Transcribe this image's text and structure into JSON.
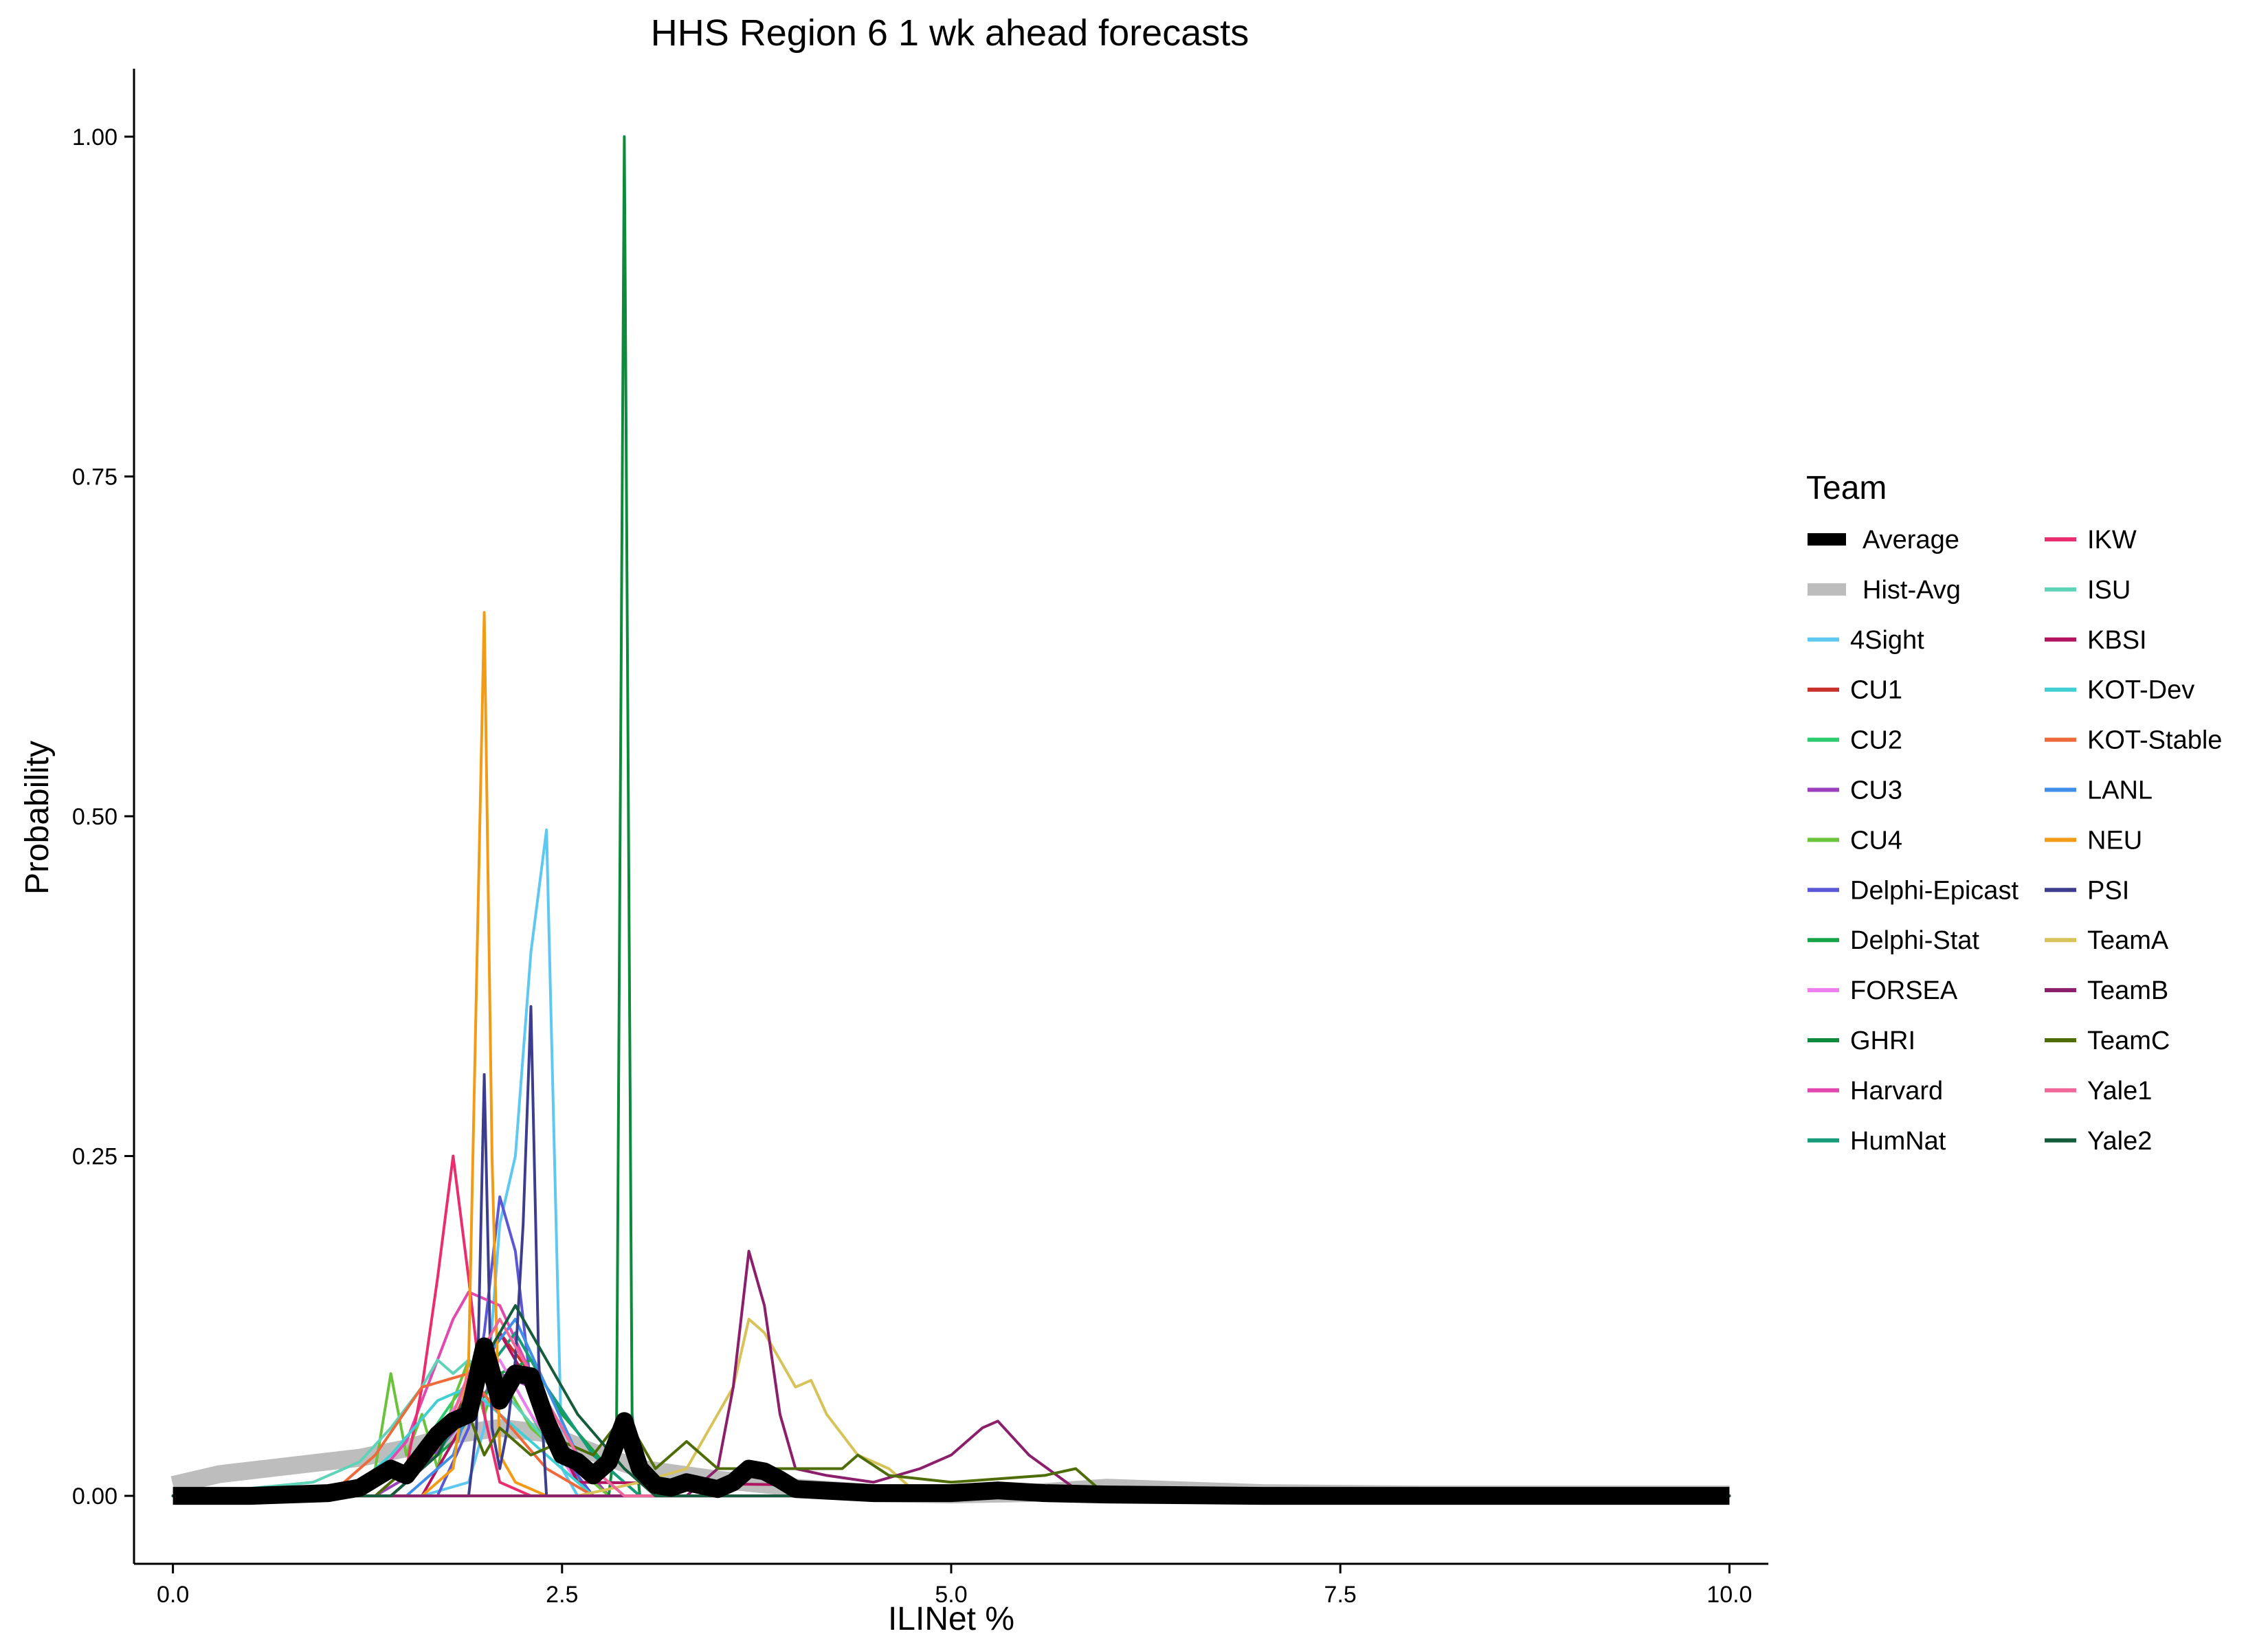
{
  "chart_data": {
    "type": "line",
    "title": "HHS Region 6 1 wk ahead forecasts",
    "xlabel": "ILINet %",
    "ylabel": "Probability",
    "xlim": [
      -0.25,
      10.25
    ],
    "ylim": [
      -0.05,
      1.05
    ],
    "xticks": [
      0,
      2.5,
      5,
      7.5,
      10
    ],
    "xtick_labels": [
      "0.0",
      "2.5",
      "5.0",
      "7.5",
      "10.0"
    ],
    "yticks": [
      0,
      0.25,
      0.5,
      0.75,
      1
    ],
    "ytick_labels": [
      "0.00",
      "0.25",
      "0.50",
      "0.75",
      "1.00"
    ],
    "grid": false,
    "legend": {
      "title": "Team",
      "placement": "right",
      "columns": [
        [
          "Average",
          "Hist-Avg",
          "4Sight",
          "CU1",
          "CU2",
          "CU3",
          "CU4",
          "Delphi-Epicast",
          "Delphi-Stat",
          "FORSEA",
          "GHRI",
          "Harvard",
          "HumNat"
        ],
        [
          "IKW",
          "ISU",
          "KBSI",
          "KOT-Dev",
          "KOT-Stable",
          "LANL",
          "NEU",
          "PSI",
          "TeamA",
          "TeamB",
          "TeamC",
          "Yale1",
          "Yale2"
        ]
      ]
    },
    "series": [
      {
        "name": "Hist-Avg",
        "color": "#bdbdbd",
        "width": 26,
        "x": [
          0,
          0.3,
          0.6,
          0.9,
          1.2,
          1.5,
          1.8,
          2.1,
          2.4,
          2.7,
          3.0,
          3.5,
          4.0,
          4.5,
          5.0,
          5.5,
          6.0,
          6.5,
          7.0,
          8,
          9,
          10
        ],
        "y": [
          0.008,
          0.016,
          0.02,
          0.024,
          0.028,
          0.035,
          0.045,
          0.05,
          0.046,
          0.032,
          0.02,
          0.012,
          0.006,
          0.002,
          0.001,
          0.002,
          0.006,
          0.004,
          0.002,
          0.001,
          0.001,
          0.001
        ]
      },
      {
        "name": "4Sight",
        "color": "#5ec8f2",
        "width": 4,
        "x": [
          0,
          1.2,
          1.6,
          1.9,
          2.0,
          2.1,
          2.2,
          2.3,
          2.4,
          2.5,
          2.6,
          10
        ],
        "y": [
          0,
          0,
          0,
          0.01,
          0.05,
          0.2,
          0.25,
          0.4,
          0.49,
          0.02,
          0,
          0
        ]
      },
      {
        "name": "CU1",
        "color": "#c8302a",
        "width": 4,
        "x": [
          0,
          1.4,
          1.7,
          1.9,
          2.1,
          2.3,
          2.5,
          2.8,
          10
        ],
        "y": [
          0,
          0,
          0.03,
          0.08,
          0.12,
          0.09,
          0.04,
          0,
          0
        ]
      },
      {
        "name": "CU2",
        "color": "#2ecc71",
        "width": 4,
        "x": [
          0,
          1.2,
          1.5,
          1.8,
          2.0,
          2.2,
          2.4,
          2.7,
          10
        ],
        "y": [
          0,
          0,
          0.02,
          0.07,
          0.1,
          0.08,
          0.04,
          0,
          0
        ]
      },
      {
        "name": "CU3",
        "color": "#9b3fbf",
        "width": 4,
        "x": [
          0,
          1.3,
          1.6,
          1.9,
          2.1,
          2.3,
          2.5,
          2.8,
          10
        ],
        "y": [
          0,
          0,
          0.02,
          0.06,
          0.09,
          0.08,
          0.04,
          0,
          0
        ]
      },
      {
        "name": "CU4",
        "color": "#6ac33a",
        "width": 4,
        "x": [
          0,
          1.2,
          1.3,
          1.4,
          1.5,
          1.6,
          1.7,
          1.8,
          1.9,
          2.0,
          2.1,
          2.3,
          2.5,
          2.8,
          10
        ],
        "y": [
          0,
          0,
          0.02,
          0.09,
          0.03,
          0.06,
          0.02,
          0.07,
          0.1,
          0.06,
          0.09,
          0.05,
          0.03,
          0,
          0
        ]
      },
      {
        "name": "Delphi-Epicast",
        "color": "#5a58d6",
        "width": 4,
        "x": [
          0,
          1.7,
          1.9,
          2.0,
          2.1,
          2.2,
          2.3,
          2.5,
          2.7,
          10
        ],
        "y": [
          0,
          0,
          0.05,
          0.12,
          0.22,
          0.18,
          0.08,
          0.03,
          0,
          0
        ]
      },
      {
        "name": "Delphi-Stat",
        "color": "#17a348",
        "width": 4,
        "x": [
          0,
          1.4,
          1.8,
          2.1,
          2.3,
          2.5,
          2.8,
          3.0,
          10
        ],
        "y": [
          0,
          0,
          0.04,
          0.09,
          0.1,
          0.06,
          0.02,
          0,
          0
        ]
      },
      {
        "name": "FORSEA",
        "color": "#ee7dee",
        "width": 4,
        "x": [
          0,
          1.3,
          1.6,
          1.9,
          2.1,
          2.3,
          2.6,
          10
        ],
        "y": [
          0,
          0,
          0.03,
          0.08,
          0.1,
          0.06,
          0.01,
          0
        ]
      },
      {
        "name": "GHRI",
        "color": "#0d8a3b",
        "width": 4,
        "x": [
          0,
          2.8,
          2.85,
          2.9,
          2.95,
          3.0,
          10
        ],
        "y": [
          0,
          0,
          0.05,
          1.0,
          0.06,
          0,
          0
        ]
      },
      {
        "name": "Harvard",
        "color": "#e249b0",
        "width": 4,
        "x": [
          0,
          1.2,
          1.5,
          1.8,
          1.9,
          2.1,
          2.3,
          2.6,
          2.9,
          10
        ],
        "y": [
          0,
          0,
          0.04,
          0.13,
          0.15,
          0.14,
          0.09,
          0.03,
          0,
          0
        ]
      },
      {
        "name": "HumNat",
        "color": "#169b7b",
        "width": 4,
        "x": [
          0,
          1.4,
          1.7,
          2.0,
          2.2,
          2.4,
          2.7,
          3.0,
          10
        ],
        "y": [
          0,
          0,
          0.03,
          0.09,
          0.12,
          0.08,
          0.03,
          0,
          0
        ]
      },
      {
        "name": "IKW",
        "color": "#ea2d6e",
        "width": 4,
        "x": [
          0,
          1.3,
          1.5,
          1.6,
          1.7,
          1.8,
          1.9,
          2.0,
          2.1,
          2.3,
          10
        ],
        "y": [
          0,
          0,
          0.02,
          0.08,
          0.16,
          0.25,
          0.16,
          0.06,
          0.01,
          0,
          0
        ]
      },
      {
        "name": "ISU",
        "color": "#5fd3b8",
        "width": 4,
        "x": [
          0,
          0.9,
          1.2,
          1.4,
          1.6,
          1.7,
          1.8,
          1.9,
          2.1,
          2.4,
          2.7,
          10
        ],
        "y": [
          0,
          0.01,
          0.025,
          0.05,
          0.08,
          0.1,
          0.09,
          0.1,
          0.08,
          0.04,
          0.01,
          0
        ]
      },
      {
        "name": "KBSI",
        "color": "#b3125f",
        "width": 4,
        "x": [
          0,
          1.6,
          1.9,
          2.1,
          2.3,
          2.6,
          10
        ],
        "y": [
          0,
          0,
          0.06,
          0.12,
          0.08,
          0.01,
          0
        ]
      },
      {
        "name": "KOT-Dev",
        "color": "#40d0d3",
        "width": 4,
        "x": [
          0,
          1.1,
          1.4,
          1.7,
          1.9,
          2.1,
          2.4,
          2.7,
          10
        ],
        "y": [
          0,
          0,
          0.03,
          0.07,
          0.08,
          0.06,
          0.03,
          0,
          0
        ]
      },
      {
        "name": "KOT-Stable",
        "color": "#ef6a3a",
        "width": 4,
        "x": [
          0,
          1.0,
          1.3,
          1.6,
          1.9,
          2.1,
          2.4,
          2.7,
          10
        ],
        "y": [
          0,
          0,
          0.03,
          0.08,
          0.09,
          0.06,
          0.02,
          0,
          0
        ]
      },
      {
        "name": "LANL",
        "color": "#3f8ee8",
        "width": 4,
        "x": [
          0,
          1.5,
          1.8,
          2.0,
          2.2,
          2.4,
          2.6,
          2.9,
          10
        ],
        "y": [
          0,
          0,
          0.03,
          0.1,
          0.13,
          0.08,
          0.03,
          0,
          0
        ]
      },
      {
        "name": "NEU",
        "color": "#f29b16",
        "width": 4,
        "x": [
          0,
          1.6,
          1.8,
          1.9,
          2.0,
          2.05,
          2.1,
          2.2,
          2.4,
          10
        ],
        "y": [
          0,
          0,
          0.02,
          0.1,
          0.65,
          0.25,
          0.03,
          0.01,
          0,
          0
        ]
      },
      {
        "name": "PSI",
        "color": "#3d3d8f",
        "width": 4,
        "x": [
          0,
          1.9,
          1.95,
          2.0,
          2.05,
          2.1,
          2.15,
          2.2,
          2.25,
          2.3,
          2.35,
          2.4,
          10
        ],
        "y": [
          0,
          0,
          0.05,
          0.31,
          0.05,
          0.02,
          0.05,
          0.1,
          0.2,
          0.36,
          0.1,
          0,
          0
        ]
      },
      {
        "name": "TeamA",
        "color": "#d8c35a",
        "width": 4,
        "x": [
          0,
          2.6,
          3.0,
          3.3,
          3.6,
          3.7,
          3.8,
          3.9,
          4.0,
          4.1,
          4.2,
          4.4,
          4.6,
          4.8,
          10
        ],
        "y": [
          0,
          0,
          0.01,
          0.02,
          0.08,
          0.13,
          0.12,
          0.1,
          0.08,
          0.085,
          0.06,
          0.03,
          0.02,
          0,
          0
        ]
      },
      {
        "name": "TeamB",
        "color": "#8b1f6b",
        "width": 4,
        "x": [
          0,
          3.3,
          3.5,
          3.6,
          3.7,
          3.8,
          3.9,
          4.0,
          4.2,
          4.5,
          4.8,
          5.0,
          5.2,
          5.3,
          5.5,
          5.8,
          10
        ],
        "y": [
          0,
          0,
          0.02,
          0.08,
          0.18,
          0.14,
          0.06,
          0.02,
          0.015,
          0.01,
          0.02,
          0.03,
          0.05,
          0.055,
          0.03,
          0.005,
          0
        ]
      },
      {
        "name": "TeamC",
        "color": "#4e6d06",
        "width": 4,
        "x": [
          0,
          1.3,
          1.5,
          1.7,
          1.9,
          2.0,
          2.1,
          2.3,
          2.5,
          2.7,
          2.9,
          3.1,
          3.3,
          3.5,
          3.9,
          4.3,
          4.4,
          4.6,
          5.0,
          5.6,
          5.8,
          6.0,
          10
        ],
        "y": [
          0,
          0,
          0.02,
          0.04,
          0.06,
          0.03,
          0.05,
          0.03,
          0.04,
          0.03,
          0.06,
          0.02,
          0.04,
          0.02,
          0.02,
          0.02,
          0.03,
          0.015,
          0.01,
          0.015,
          0.02,
          0,
          0
        ]
      },
      {
        "name": "Yale1",
        "color": "#f0689a",
        "width": 4,
        "x": [
          0,
          1.4,
          1.7,
          1.9,
          2.1,
          2.3,
          2.6,
          2.9,
          10
        ],
        "y": [
          0,
          0,
          0.03,
          0.09,
          0.13,
          0.09,
          0.03,
          0,
          0
        ]
      },
      {
        "name": "Yale2",
        "color": "#145c3c",
        "width": 4,
        "x": [
          0,
          1.4,
          1.7,
          2.0,
          2.2,
          2.4,
          2.6,
          2.9,
          3.1,
          10
        ],
        "y": [
          0,
          0,
          0.03,
          0.1,
          0.14,
          0.1,
          0.06,
          0.02,
          0,
          0
        ]
      },
      {
        "name": "Average",
        "color": "#000000",
        "width": 26,
        "x": [
          0,
          0.5,
          1.0,
          1.2,
          1.4,
          1.5,
          1.6,
          1.7,
          1.8,
          1.9,
          2.0,
          2.1,
          2.2,
          2.3,
          2.4,
          2.5,
          2.6,
          2.7,
          2.8,
          2.9,
          3.0,
          3.1,
          3.2,
          3.3,
          3.5,
          3.6,
          3.7,
          3.8,
          3.9,
          4.0,
          4.5,
          5.0,
          5.3,
          5.6,
          6.0,
          7.0,
          8.0,
          9.0,
          10.0
        ],
        "y": [
          0,
          0,
          0.002,
          0.006,
          0.02,
          0.015,
          0.03,
          0.045,
          0.055,
          0.06,
          0.11,
          0.07,
          0.09,
          0.088,
          0.055,
          0.03,
          0.025,
          0.015,
          0.025,
          0.055,
          0.02,
          0.008,
          0.006,
          0.01,
          0.005,
          0.01,
          0.02,
          0.018,
          0.012,
          0.005,
          0.002,
          0.002,
          0.004,
          0.002,
          0.001,
          0,
          0,
          0,
          0
        ]
      }
    ]
  }
}
